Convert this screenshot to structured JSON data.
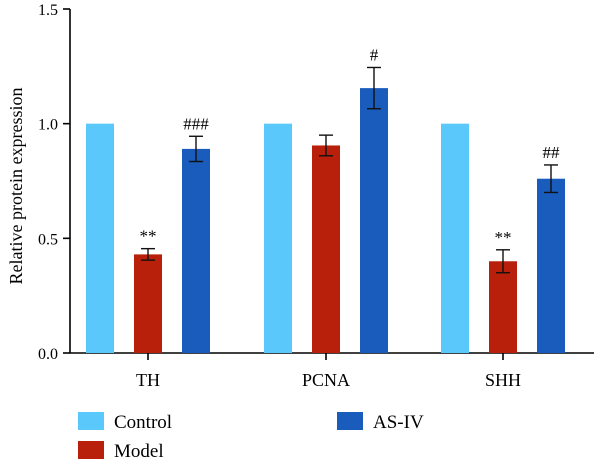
{
  "chart_data": {
    "type": "bar",
    "categories": [
      "TH",
      "PCNA",
      "SHH"
    ],
    "ylabel": "Relative protein expression",
    "xlabel": "",
    "ylim": [
      0,
      1.5
    ],
    "yticks": [
      "0.0",
      "0.5",
      "1.0",
      "1.5"
    ],
    "grid": false,
    "legend_position": "bottom",
    "series": [
      {
        "name": "Control",
        "color": "#5bc8fb",
        "values": [
          1.0,
          1.0,
          1.0
        ],
        "errors": [
          0,
          0,
          0
        ],
        "annotations": [
          "",
          "",
          ""
        ]
      },
      {
        "name": "Model",
        "color": "#b8200b",
        "values": [
          0.43,
          0.905,
          0.4
        ],
        "errors": [
          0.025,
          0.045,
          0.05
        ],
        "annotations": [
          "**",
          "",
          "**"
        ]
      },
      {
        "name": "AS-IV",
        "color": "#1a5cbc",
        "values": [
          0.89,
          1.155,
          0.76
        ],
        "errors": [
          0.055,
          0.09,
          0.06
        ],
        "annotations": [
          "###",
          "#",
          "##"
        ]
      }
    ]
  }
}
